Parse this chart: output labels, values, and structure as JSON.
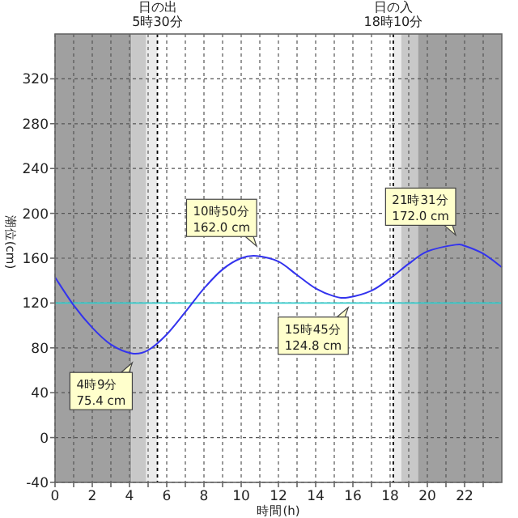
{
  "chart_data": {
    "type": "line",
    "xlabel": "時間(h)",
    "ylabel": "潮位(cm)",
    "xlim": [
      0,
      24
    ],
    "ylim": [
      -40,
      360
    ],
    "xticks": [
      0,
      {
        "value": 1,
        "label": null
      },
      2,
      {
        "value": 3,
        "label": null
      },
      4,
      {
        "value": 5,
        "label": null
      },
      6,
      {
        "value": 7,
        "label": null
      },
      8,
      {
        "value": 9,
        "label": null
      },
      10,
      {
        "value": 11,
        "label": null
      },
      12,
      {
        "value": 13,
        "label": null
      },
      14,
      {
        "value": 15,
        "label": null
      },
      16,
      {
        "value": 17,
        "label": null
      },
      18,
      {
        "value": 19,
        "label": null
      },
      20,
      {
        "value": 21,
        "label": null
      },
      22,
      {
        "value": 23,
        "label": null
      }
    ],
    "yticks": [
      -40,
      0,
      40,
      80,
      120,
      160,
      200,
      240,
      280,
      320
    ],
    "grid": true,
    "marker": "none",
    "line_style": "solid",
    "series": [
      {
        "color": "#3333ee",
        "x": [
          0,
          1,
          2,
          3,
          4.15,
          5,
          6,
          7,
          8,
          9,
          10,
          10.83,
          12,
          13,
          14,
          15,
          15.75,
          17,
          18,
          19,
          20,
          21.52,
          22,
          23,
          24
        ],
        "values": [
          143,
          118,
          98,
          83,
          75,
          78,
          92,
          112,
          133,
          150,
          160,
          162,
          157,
          145,
          133,
          126,
          125,
          131,
          142,
          155,
          166,
          172,
          171,
          164,
          152
        ]
      }
    ],
    "bands": [
      {
        "axis": "x",
        "from": 0,
        "to": 4.1,
        "color": "#a0a0a0"
      },
      {
        "axis": "x",
        "from": 4.1,
        "to": 4.9,
        "color": "#c8c8c8"
      },
      {
        "axis": "x",
        "from": 4.9,
        "to": 5.5,
        "color": "#ebebeb"
      },
      {
        "axis": "x",
        "from": 18.17,
        "to": 18.6,
        "color": "#ebebeb"
      },
      {
        "axis": "x",
        "from": 18.6,
        "to": 19.5,
        "color": "#c8c8c8"
      },
      {
        "axis": "x",
        "from": 19.5,
        "to": 24,
        "color": "#a0a0a0"
      }
    ],
    "ref_lines": [
      {
        "axis": "x",
        "value": 5.5,
        "label": "日の出\n5時30分",
        "color": "#000000",
        "line_style": "dotted"
      },
      {
        "axis": "x",
        "value": 18.17,
        "label": "日の入\n18時10分",
        "color": "#000000",
        "line_style": "dotted"
      },
      {
        "axis": "y",
        "value": 120,
        "color": "#33cccc",
        "line_style": "solid"
      }
    ],
    "annotations": [
      {
        "text": "4時9分\n75.4 cm",
        "x": 4.15,
        "y": 75.4
      },
      {
        "text": "10時50分\n162.0 cm",
        "x": 10.83,
        "y": 162.0
      },
      {
        "text": "15時45分\n124.8 cm",
        "x": 15.75,
        "y": 124.8
      },
      {
        "text": "21時31分\n172.0 cm",
        "x": 21.52,
        "y": 172.0
      }
    ]
  }
}
